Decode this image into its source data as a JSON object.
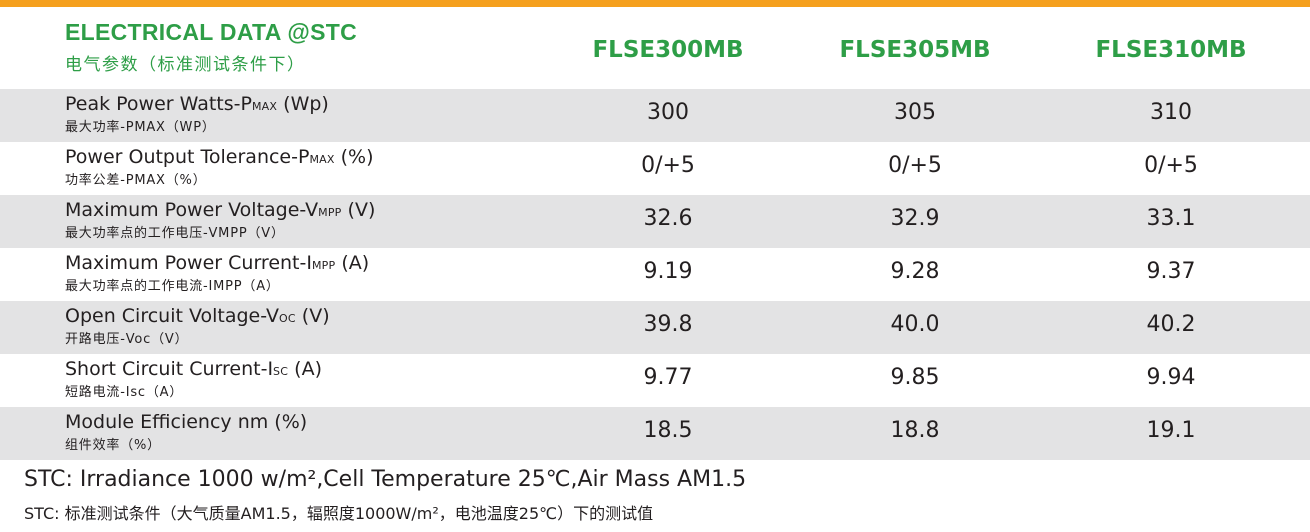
{
  "accent_color": "#2e9e47",
  "top_bar_color": "#f5a01e",
  "header": {
    "title": "ELECTRICAL DATA @STC",
    "subtitle": "电气参数（标准测试条件下）",
    "models": [
      "FLSE300MB",
      "FLSE305MB",
      "FLSE310MB"
    ]
  },
  "rows": [
    {
      "en_main": "Peak Power Watts-P",
      "en_sub": "MAX",
      "en_tail": " (Wp)",
      "cn": "最大功率-PMAX（WP）",
      "values": [
        "300",
        "305",
        "310"
      ]
    },
    {
      "en_main": "Power Output Tolerance-P",
      "en_sub": "MAX",
      "en_tail": " (%)",
      "cn": "功率公差-PMAX（%）",
      "values": [
        "0/+5",
        "0/+5",
        "0/+5"
      ]
    },
    {
      "en_main": "Maximum Power Voltage-V",
      "en_sub": "MPP",
      "en_tail": " (V)",
      "cn": "最大功率点的工作电压-VMPP（V）",
      "values": [
        "32.6",
        "32.9",
        "33.1"
      ]
    },
    {
      "en_main": "Maximum Power Current-I",
      "en_sub": "MPP",
      "en_tail": " (A)",
      "cn": "最大功率点的工作电流-IMPP（A）",
      "values": [
        "9.19",
        "9.28",
        "9.37"
      ]
    },
    {
      "en_main": "Open Circuit Voltage-V",
      "en_sub": "OC",
      "en_tail": " (V)",
      "cn": "开路电压-Voc（V）",
      "values": [
        "39.8",
        "40.0",
        "40.2"
      ]
    },
    {
      "en_main": "Short Circuit Current-I",
      "en_sub": "SC",
      "en_tail": " (A)",
      "cn": "短路电流-Isc（A）",
      "values": [
        "9.77",
        "9.85",
        "9.94"
      ]
    },
    {
      "en_main": "Module Efficiency nm (%)",
      "en_sub": "",
      "en_tail": "",
      "cn": "组件效率（%）",
      "values": [
        "18.5",
        "18.8",
        "19.1"
      ]
    }
  ],
  "footnote": {
    "en": "STC: Irradiance 1000 w/m²,Cell Temperature 25℃,Air Mass AM1.5",
    "cn": "STC: 标准测试条件（大气质量AM1.5，辐照度1000W/m²，电池温度25℃）下的测试值"
  }
}
